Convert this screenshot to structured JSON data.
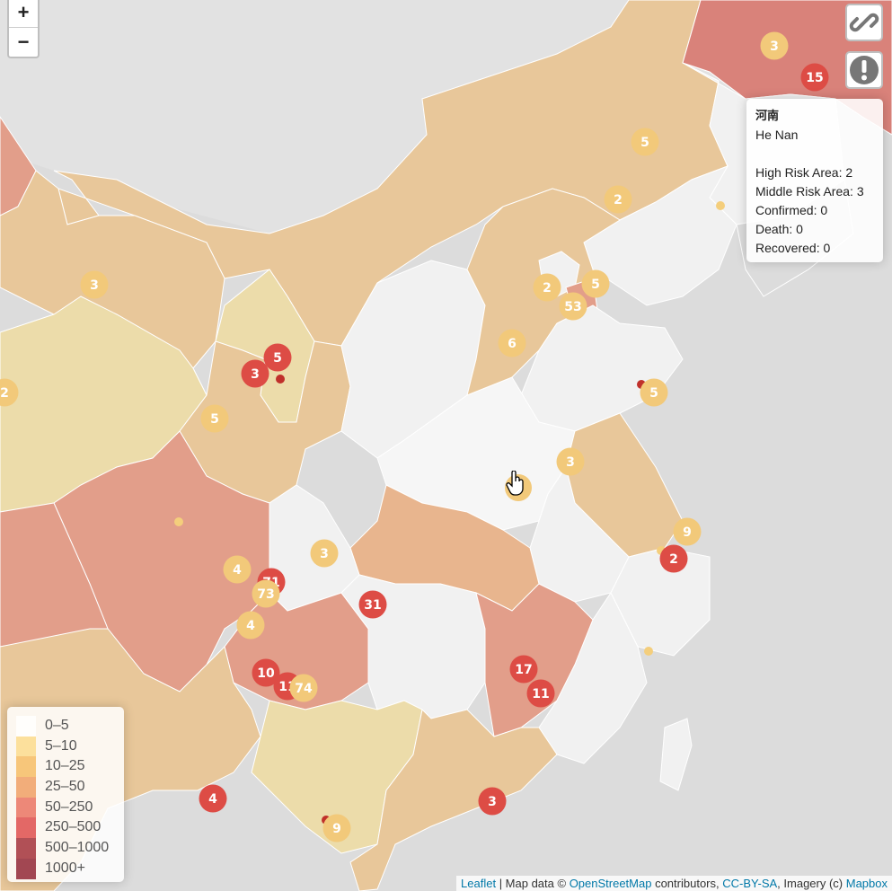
{
  "zoom": {
    "in_label": "+",
    "out_label": "−"
  },
  "buttons": {
    "link": "link-icon",
    "alert": "exclamation-icon"
  },
  "info": {
    "title": "河南",
    "name": "He Nan",
    "high": "High Risk Area: 2",
    "middle": "Middle Risk Area: 3",
    "confirmed": "Confirmed: 0",
    "death": "Death: 0",
    "recovered": "Recovered: 0"
  },
  "legend": [
    {
      "label": "0–5",
      "color": "#ffffff"
    },
    {
      "label": "5–10",
      "color": "#fbd987"
    },
    {
      "label": "10–25",
      "color": "#f5b95c"
    },
    {
      "label": "25–50",
      "color": "#ef9a5c"
    },
    {
      "label": "50–250",
      "color": "#e96b5a"
    },
    {
      "label": "250–500",
      "color": "#dc4444"
    },
    {
      "label": "500–1000",
      "color": "#9e2530"
    },
    {
      "label": "1000+",
      "color": "#8b1a2a"
    }
  ],
  "markers": [
    {
      "label": "3",
      "kind": "yellow"
    },
    {
      "label": "15",
      "kind": "red"
    },
    {
      "label": "5",
      "kind": "yellow"
    },
    {
      "label": "2",
      "kind": "yellow"
    },
    {
      "label": "2",
      "kind": "yellow"
    },
    {
      "label": "5",
      "kind": "yellow"
    },
    {
      "label": "53",
      "kind": "yellow"
    },
    {
      "label": "6",
      "kind": "yellow"
    },
    {
      "label": "3",
      "kind": "yellow"
    },
    {
      "label": "5",
      "kind": "red"
    },
    {
      "label": "3",
      "kind": "red"
    },
    {
      "label": "2",
      "kind": "yellow"
    },
    {
      "label": "5",
      "kind": "yellow"
    },
    {
      "label": "5",
      "kind": "yellow"
    },
    {
      "label": "3",
      "kind": "yellow"
    },
    {
      "label": "9",
      "kind": "yellow"
    },
    {
      "label": "2",
      "kind": "red"
    },
    {
      "label": "3",
      "kind": "yellow"
    },
    {
      "label": "4",
      "kind": "yellow"
    },
    {
      "label": "71",
      "kind": "red"
    },
    {
      "label": "73",
      "kind": "yellow"
    },
    {
      "label": "31",
      "kind": "red"
    },
    {
      "label": "4",
      "kind": "yellow"
    },
    {
      "label": "10",
      "kind": "red"
    },
    {
      "label": "11",
      "kind": "red"
    },
    {
      "label": "74",
      "kind": "yellow"
    },
    {
      "label": "17",
      "kind": "red"
    },
    {
      "label": "11",
      "kind": "red"
    },
    {
      "label": "4",
      "kind": "red"
    },
    {
      "label": "3",
      "kind": "red"
    },
    {
      "label": "9",
      "kind": "yellow"
    }
  ],
  "attribution": {
    "leaflet": "Leaflet",
    "sep1": " | Map data © ",
    "osm": "OpenStreetMap",
    "sep2": " contributors, ",
    "license": "CC-BY-SA",
    "sep3": ", Imagery (c) ",
    "mapbox": "Mapbox"
  }
}
